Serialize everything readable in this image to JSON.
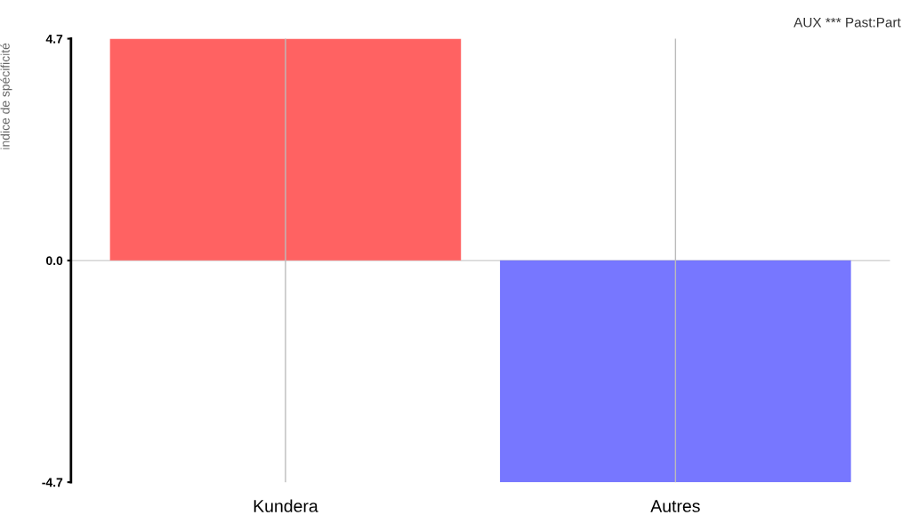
{
  "chart_data": {
    "type": "bar",
    "title": "AUX *** Past:Part",
    "ylabel": "indice de spécificité",
    "categories": [
      "Kundera",
      "Autres"
    ],
    "values": [
      4.7,
      -4.7
    ],
    "colors": [
      "#ff5a5a",
      "#7070ff"
    ],
    "ylim": [
      -4.7,
      4.7
    ],
    "yticks": [
      4.7,
      {
        "value": 0,
        "label": "0.0"
      },
      -4.7
    ],
    "ref_lines": [
      {
        "axis": "y",
        "value": 0,
        "color": "#cccccc"
      }
    ],
    "grid": "x",
    "legend": false
  }
}
